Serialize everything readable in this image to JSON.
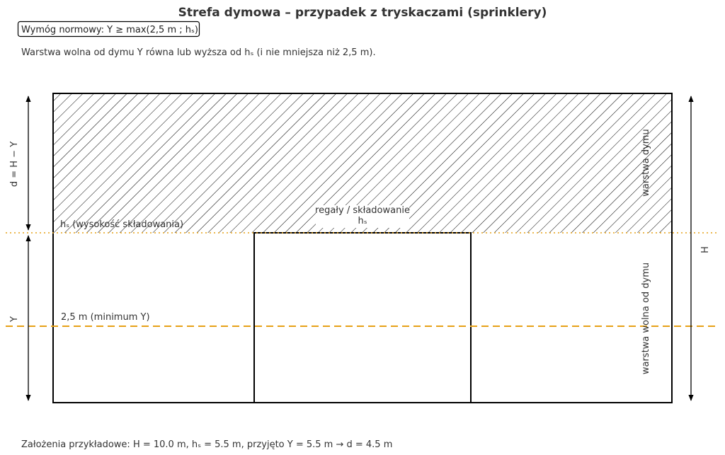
{
  "title": "Strefa dymowa – przypadek z tryskaczami (sprinklery)",
  "requirement_box": "Wymóg normowy:  Y ≥ max(2,5 m ; hₛ)",
  "subtitle": "Warstwa wolna od dymu Y równa lub wyższa od hₛ (i nie mniejsza niż 2,5 m).",
  "labels": {
    "hs_line": "hₛ (wysokość składowania)",
    "min_line": "2,5 m (minimum Y)",
    "storage_line1": "regały / składowanie",
    "storage_line2": "hₛ",
    "smoke_layer": "warstwa dymu",
    "smoke_free_layer": "warstwa wolna od dymu",
    "dim_d": "d = H − Y",
    "dim_y": "Y",
    "dim_h": "H"
  },
  "footer": "Założenia przykładowe:  H = 10.0 m,  hₛ = 5.5 m,  przyjęto Y = 5.5 m  →  d = 4.5 m",
  "values": {
    "H_m": 10.0,
    "hs_m": 5.5,
    "Y_m": 5.5,
    "d_m": 4.5,
    "Y_min_m": 2.5
  },
  "colors": {
    "outline": "#000000",
    "text": "#333333",
    "reference_line": "#e6a117",
    "hatch": "#000000"
  }
}
